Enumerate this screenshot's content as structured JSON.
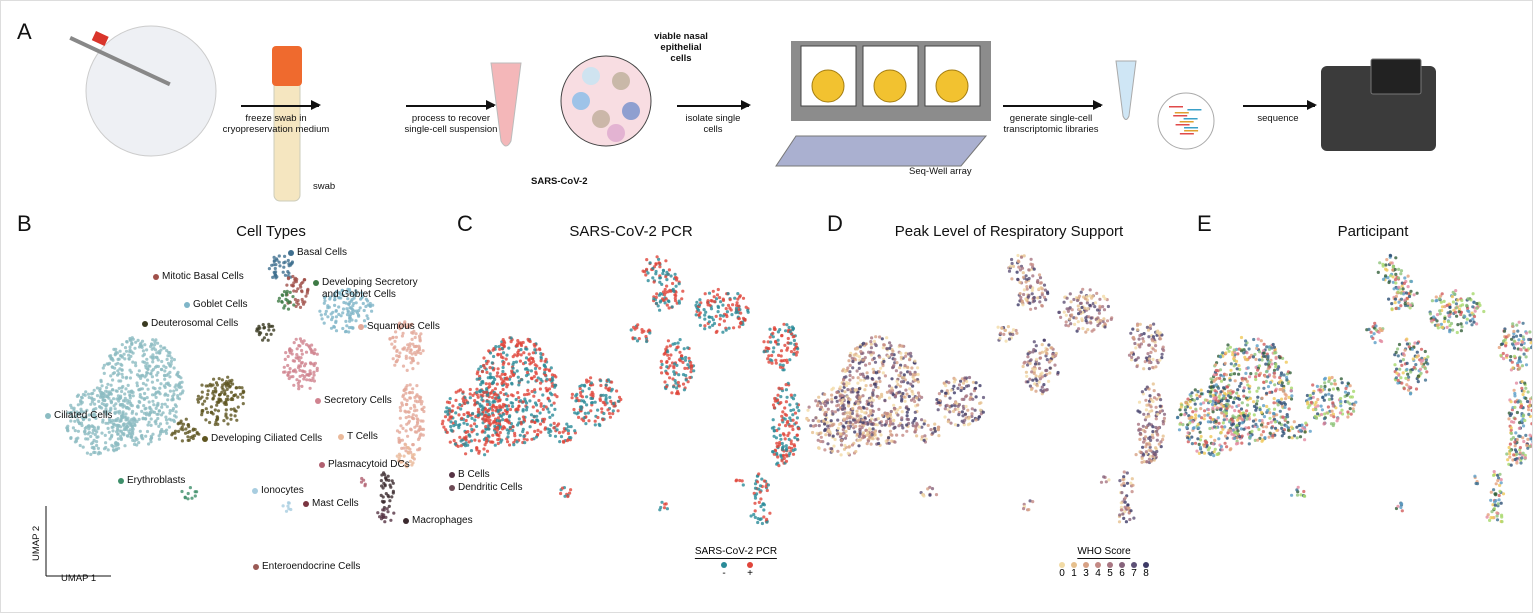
{
  "panels": {
    "a": "A",
    "b": "B",
    "c": "C",
    "d": "D",
    "e": "E"
  },
  "workflow": {
    "steps": [
      "freeze swab in cryopreservation medium",
      "process to recover single-cell suspension",
      "isolate single cells",
      "generate single-cell transcriptomic libraries",
      "sequence"
    ],
    "annotations": {
      "swab": "swab",
      "viable": "viable nasal epithelial cells",
      "sars": "SARS-CoV-2",
      "seqwell": "Seq-Well array"
    }
  },
  "titles": {
    "b": "Cell Types",
    "c": "SARS-CoV-2 PCR",
    "d": "Peak Level of Respiratory Support",
    "e": "Participant"
  },
  "axes": {
    "x": "UMAP 1",
    "y": "UMAP 2"
  },
  "cell_types": [
    {
      "name": "Basal Cells",
      "color": "#3f6f8f"
    },
    {
      "name": "Mitotic Basal Cells",
      "color": "#a0504a"
    },
    {
      "name": "Developing Secretory and Goblet Cells",
      "color": "#3e7a45"
    },
    {
      "name": "Goblet Cells",
      "color": "#7fb5c8"
    },
    {
      "name": "Deuterosomal Cells",
      "color": "#3a3a20"
    },
    {
      "name": "Squamous Cells",
      "color": "#e3a99a"
    },
    {
      "name": "Ciliated Cells",
      "color": "#8cbcc2"
    },
    {
      "name": "Secretory Cells",
      "color": "#d0838f"
    },
    {
      "name": "Developing Ciliated Cells",
      "color": "#5e5520"
    },
    {
      "name": "T Cells",
      "color": "#eab99a"
    },
    {
      "name": "Plasmacytoid DCs",
      "color": "#b06070"
    },
    {
      "name": "B Cells",
      "color": "#553344"
    },
    {
      "name": "Dendritic Cells",
      "color": "#6d4a55"
    },
    {
      "name": "Erythroblasts",
      "color": "#3e8f6a"
    },
    {
      "name": "Ionocytes",
      "color": "#a8cde0"
    },
    {
      "name": "Mast Cells",
      "color": "#7a3540"
    },
    {
      "name": "Macrophages",
      "color": "#3b2a2e"
    },
    {
      "name": "Enteroendocrine Cells",
      "color": "#9a5a55"
    }
  ],
  "pcr_legend": {
    "title": "SARS-CoV-2 PCR",
    "items": [
      {
        "label": "-",
        "color": "#2a8b98"
      },
      {
        "label": "+",
        "color": "#e0453a"
      }
    ]
  },
  "who_legend": {
    "title": "WHO Score",
    "items": [
      {
        "label": "0",
        "color": "#f2dba6"
      },
      {
        "label": "1",
        "color": "#e6c08e"
      },
      {
        "label": "3",
        "color": "#d7a184"
      },
      {
        "label": "4",
        "color": "#c48a85"
      },
      {
        "label": "5",
        "color": "#a87682"
      },
      {
        "label": "6",
        "color": "#86637c"
      },
      {
        "label": "7",
        "color": "#5e5177"
      },
      {
        "label": "8",
        "color": "#3d3a66"
      }
    ]
  }
}
